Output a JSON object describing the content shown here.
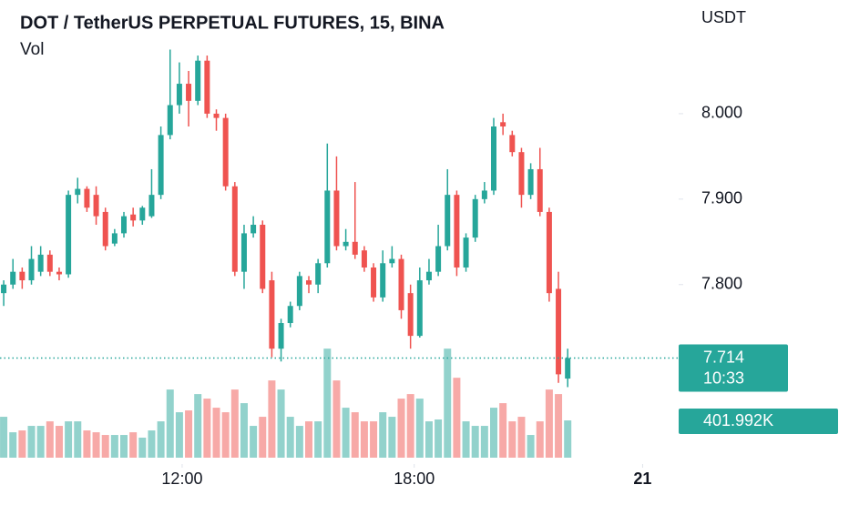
{
  "chart_data": {
    "type": "candlestick",
    "title": "DOT / TetherUS PERPETUAL FUTURES, 15, BINA",
    "volume_title": "Vol",
    "currency": "USDT",
    "up_color": "#26a69a",
    "down_color": "#ef5350",
    "ylim": [
      7.59,
      8.133
    ],
    "yticks": [
      {
        "value": 7.8,
        "label": "7.800"
      },
      {
        "value": 7.9,
        "label": "7.900"
      },
      {
        "value": 8.0,
        "label": "8.000"
      }
    ],
    "xlim": [
      -0.4,
      73
    ],
    "xticks": [
      {
        "value": 19.3,
        "label": "12:00"
      },
      {
        "value": 44.4,
        "label": "18:00"
      },
      {
        "value": 69.1,
        "label": "21"
      }
    ],
    "vlim": [
      0,
      1570000
    ],
    "grid": false,
    "last_price": 7.714,
    "countdown": "10:33",
    "last_volume_label": "401.992K",
    "open": [
      7.79,
      7.8,
      7.815,
      7.805,
      7.815,
      7.835,
      7.815,
      7.812,
      7.905,
      7.912,
      7.905,
      7.885,
      7.848,
      7.86,
      7.882,
      7.875,
      7.88,
      7.905,
      7.975,
      8.01,
      8.035,
      8.015,
      8.062,
      8.0,
      7.995,
      7.915,
      7.815,
      7.86,
      7.87,
      7.805,
      7.725,
      7.755,
      7.775,
      7.805,
      7.8,
      7.825,
      7.91,
      7.845,
      7.85,
      7.84,
      7.82,
      7.785,
      7.825,
      7.83,
      7.79,
      7.74,
      7.805,
      7.815,
      7.845,
      7.905,
      7.82,
      7.855,
      7.9,
      7.91,
      7.99,
      7.975,
      7.955,
      7.905,
      7.935,
      7.885,
      7.795,
      7.69
    ],
    "high": [
      7.805,
      7.83,
      7.82,
      7.845,
      7.845,
      7.84,
      7.82,
      7.91,
      7.925,
      7.915,
      7.915,
      7.89,
      7.865,
      7.885,
      7.89,
      7.892,
      7.935,
      7.985,
      8.075,
      8.06,
      8.05,
      8.068,
      8.068,
      8.005,
      8.0,
      7.92,
      7.87,
      7.88,
      7.875,
      7.815,
      7.76,
      7.78,
      7.815,
      7.81,
      7.83,
      7.965,
      7.95,
      7.865,
      7.92,
      7.845,
      7.825,
      7.84,
      7.845,
      7.835,
      7.8,
      7.82,
      7.83,
      7.87,
      7.935,
      7.91,
      7.86,
      7.905,
      7.92,
      7.995,
      8.0,
      7.98,
      7.96,
      7.942,
      7.96,
      7.89,
      7.815,
      7.725
    ],
    "low": [
      7.775,
      7.795,
      7.795,
      7.8,
      7.81,
      7.81,
      7.805,
      7.808,
      7.895,
      7.885,
      7.87,
      7.84,
      7.845,
      7.855,
      7.868,
      7.87,
      7.878,
      7.9,
      7.97,
      8.0,
      7.985,
      8.01,
      7.995,
      7.98,
      7.91,
      7.81,
      7.795,
      7.855,
      7.79,
      7.715,
      7.71,
      7.75,
      7.77,
      7.79,
      7.79,
      7.82,
      7.84,
      7.84,
      7.83,
      7.815,
      7.78,
      7.78,
      7.82,
      7.76,
      7.725,
      7.738,
      7.8,
      7.81,
      7.84,
      7.81,
      7.815,
      7.85,
      7.895,
      7.905,
      7.975,
      7.95,
      7.89,
      7.9,
      7.88,
      7.78,
      7.685,
      7.68
    ],
    "close": [
      7.8,
      7.815,
      7.805,
      7.83,
      7.835,
      7.815,
      7.812,
      7.905,
      7.912,
      7.89,
      7.88,
      7.845,
      7.86,
      7.88,
      7.875,
      7.89,
      7.905,
      7.975,
      8.01,
      8.035,
      8.015,
      8.062,
      8.0,
      7.995,
      7.915,
      7.815,
      7.86,
      7.87,
      7.795,
      7.725,
      7.755,
      7.775,
      7.81,
      7.8,
      7.825,
      7.91,
      7.845,
      7.85,
      7.835,
      7.82,
      7.785,
      7.825,
      7.83,
      7.77,
      7.74,
      7.805,
      7.815,
      7.845,
      7.905,
      7.82,
      7.855,
      7.9,
      7.91,
      7.985,
      7.985,
      7.955,
      7.905,
      7.935,
      7.885,
      7.79,
      7.695,
      7.714
    ],
    "volume": [
      441000,
      274000,
      294000,
      343000,
      343000,
      392000,
      343000,
      392000,
      392000,
      294000,
      274000,
      245000,
      245000,
      245000,
      274000,
      216000,
      294000,
      392000,
      735000,
      490000,
      510000,
      686000,
      637000,
      539000,
      490000,
      735000,
      588000,
      343000,
      441000,
      833000,
      735000,
      441000,
      343000,
      392000,
      392000,
      1176000,
      833000,
      539000,
      490000,
      392000,
      392000,
      490000,
      441000,
      637000,
      686000,
      637000,
      392000,
      412000,
      1176000,
      862000,
      392000,
      343000,
      343000,
      539000,
      588000,
      392000,
      441000,
      245000,
      392000,
      735000,
      686000,
      401992
    ]
  }
}
